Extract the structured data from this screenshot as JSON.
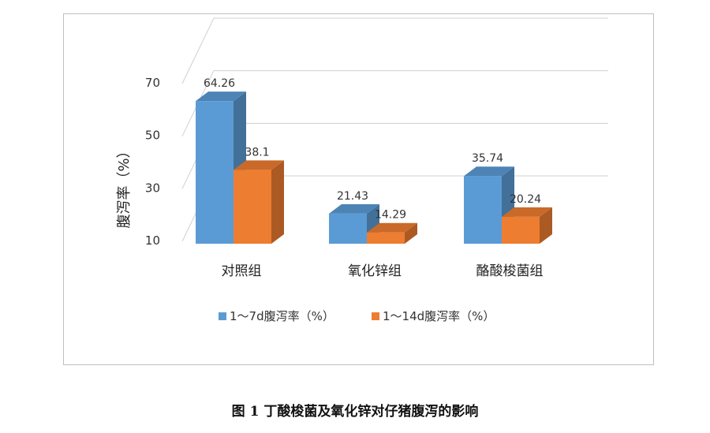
{
  "caption": "图 1  丁酸梭菌及氧化锌对仔猪腹泻的影响",
  "chart_data": {
    "type": "bar",
    "style": "3d-clustered-column",
    "title": "",
    "xlabel": "",
    "ylabel": "腹泻率（%）",
    "ylim": [
      10,
      70
    ],
    "yticks": [
      10,
      30,
      50,
      70
    ],
    "grid": true,
    "legend_position": "bottom",
    "categories": [
      "对照组",
      "氧化锌组",
      "酪酸梭菌组"
    ],
    "series": [
      {
        "name": "1～7d腹泻率（%）",
        "values": [
          64.26,
          21.43,
          35.74
        ],
        "labels": [
          "64.26",
          "21.43",
          "35.74"
        ],
        "color": "#5b9bd5"
      },
      {
        "name": "1～14d腹泻率（%）",
        "values": [
          38.1,
          14.29,
          20.24
        ],
        "labels": [
          "38.1",
          "14.29",
          "20.24"
        ],
        "color": "#ed7d31"
      }
    ]
  }
}
